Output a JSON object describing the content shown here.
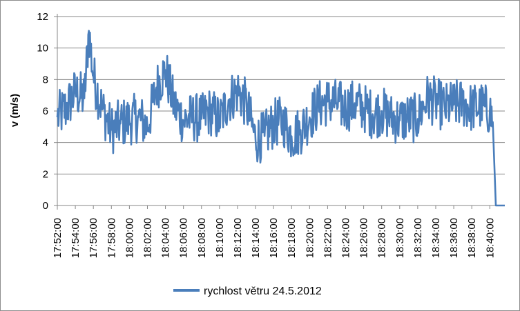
{
  "chart_data": {
    "type": "line",
    "title": "",
    "xlabel": "",
    "ylabel": "v (m/s)",
    "ylim": [
      0,
      12
    ],
    "yticks": [
      "0",
      "2",
      "4",
      "6",
      "8",
      "10",
      "12"
    ],
    "xlim": [
      "17:52:00",
      "18:41:40"
    ],
    "xtick_labels": [
      "17:52:00",
      "17:54:00",
      "17:56:00",
      "17:58:00",
      "18:00:00",
      "18:02:00",
      "18:04:00",
      "18:06:00",
      "18:08:00",
      "18:10:00",
      "18:12:00",
      "18:14:00",
      "18:16:00",
      "18:18:00",
      "18:20:00",
      "18:22:00",
      "18:24:00",
      "18:26:00",
      "18:28:00",
      "18:30:00",
      "18:32:00",
      "18:34:00",
      "18:36:00",
      "18:38:00",
      "18:40:00"
    ],
    "grid": {
      "horizontal": true,
      "vertical": false
    },
    "legend_position": "bottom",
    "colors": {
      "series": "#4a7ebb",
      "grid": "#878787",
      "frame": "#8c8c8c"
    },
    "series": [
      {
        "name": "rychlost větru 24.5.2012",
        "x": [
          "17:52:00",
          "17:53:00",
          "17:54:00",
          "17:55:00",
          "17:55:30",
          "17:56:00",
          "17:57:00",
          "17:58:00",
          "17:59:00",
          "18:00:00",
          "18:01:00",
          "18:02:00",
          "18:03:00",
          "18:04:00",
          "18:05:00",
          "18:06:00",
          "18:07:00",
          "18:08:00",
          "18:09:00",
          "18:10:00",
          "18:11:00",
          "18:12:00",
          "18:13:00",
          "18:14:00",
          "18:15:00",
          "18:16:00",
          "18:17:00",
          "18:18:00",
          "18:19:00",
          "18:20:00",
          "18:21:00",
          "18:22:00",
          "18:23:00",
          "18:24:00",
          "18:25:00",
          "18:26:00",
          "18:27:00",
          "18:28:00",
          "18:29:00",
          "18:30:00",
          "18:31:00",
          "18:32:00",
          "18:33:00",
          "18:34:00",
          "18:35:00",
          "18:36:00",
          "18:37:00",
          "18:38:00",
          "18:39:00",
          "18:40:00",
          "18:40:20",
          "18:40:40",
          "18:41:00",
          "18:41:40"
        ],
        "values": [
          5.6,
          6.2,
          7.2,
          6.8,
          11.1,
          8.2,
          6.1,
          4.8,
          5.2,
          5.4,
          5.6,
          5.0,
          7.5,
          8.6,
          6.3,
          5.4,
          5.6,
          5.5,
          6.0,
          5.4,
          6.7,
          7.3,
          6.4,
          4.2,
          4.4,
          5.2,
          5.4,
          4.4,
          4.8,
          5.6,
          6.4,
          6.6,
          6.5,
          6.2,
          6.5,
          6.2,
          5.8,
          6.0,
          5.6,
          5.4,
          5.6,
          5.5,
          6.8,
          6.6,
          6.2,
          6.4,
          6.5,
          6.2,
          6.3,
          6.0,
          5.3,
          0.0,
          0.0,
          0.0
        ]
      }
    ]
  }
}
